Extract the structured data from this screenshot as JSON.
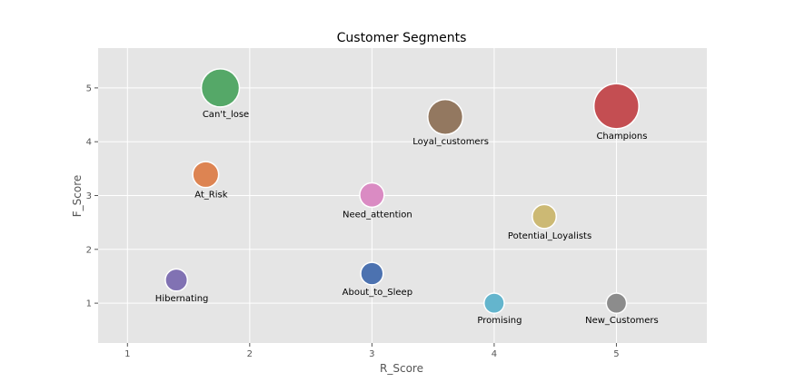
{
  "chart_data": {
    "type": "scatter",
    "title": "Customer Segments",
    "xlabel": "R_Score",
    "ylabel": "F_Score",
    "xlim": [
      0.76,
      5.74
    ],
    "ylim": [
      0.26,
      5.74
    ],
    "xticks": [
      "1",
      "2",
      "3",
      "4",
      "5"
    ],
    "yticks": [
      "1",
      "2",
      "3",
      "4",
      "5"
    ],
    "grid": true,
    "legend": "none",
    "points": [
      {
        "label": "Can't_lose",
        "x": 1.76,
        "y": 5.0,
        "size": 1.0,
        "color": "#55a868"
      },
      {
        "label": "Loyal_customers",
        "x": 3.6,
        "y": 4.46,
        "size": 0.92,
        "color": "#937860"
      },
      {
        "label": "Champions",
        "x": 5.0,
        "y": 4.66,
        "size": 1.18,
        "color": "#c44e52"
      },
      {
        "label": "At_Risk",
        "x": 1.64,
        "y": 3.39,
        "size": 0.68,
        "color": "#dd8452"
      },
      {
        "label": "Need_attention",
        "x": 3.0,
        "y": 3.01,
        "size": 0.64,
        "color": "#da8bc3"
      },
      {
        "label": "Potential_Loyalists",
        "x": 4.41,
        "y": 2.61,
        "size": 0.63,
        "color": "#ccb974"
      },
      {
        "label": "Hibernating",
        "x": 1.4,
        "y": 1.43,
        "size": 0.58,
        "color": "#8172b3"
      },
      {
        "label": "About_to_Sleep",
        "x": 3.0,
        "y": 1.55,
        "size": 0.59,
        "color": "#4c72b0"
      },
      {
        "label": "Promising",
        "x": 4.0,
        "y": 1.0,
        "size": 0.53,
        "color": "#64b5cd"
      },
      {
        "label": "New_Customers",
        "x": 5.0,
        "y": 1.0,
        "size": 0.53,
        "color": "#8c8c8c"
      }
    ]
  }
}
